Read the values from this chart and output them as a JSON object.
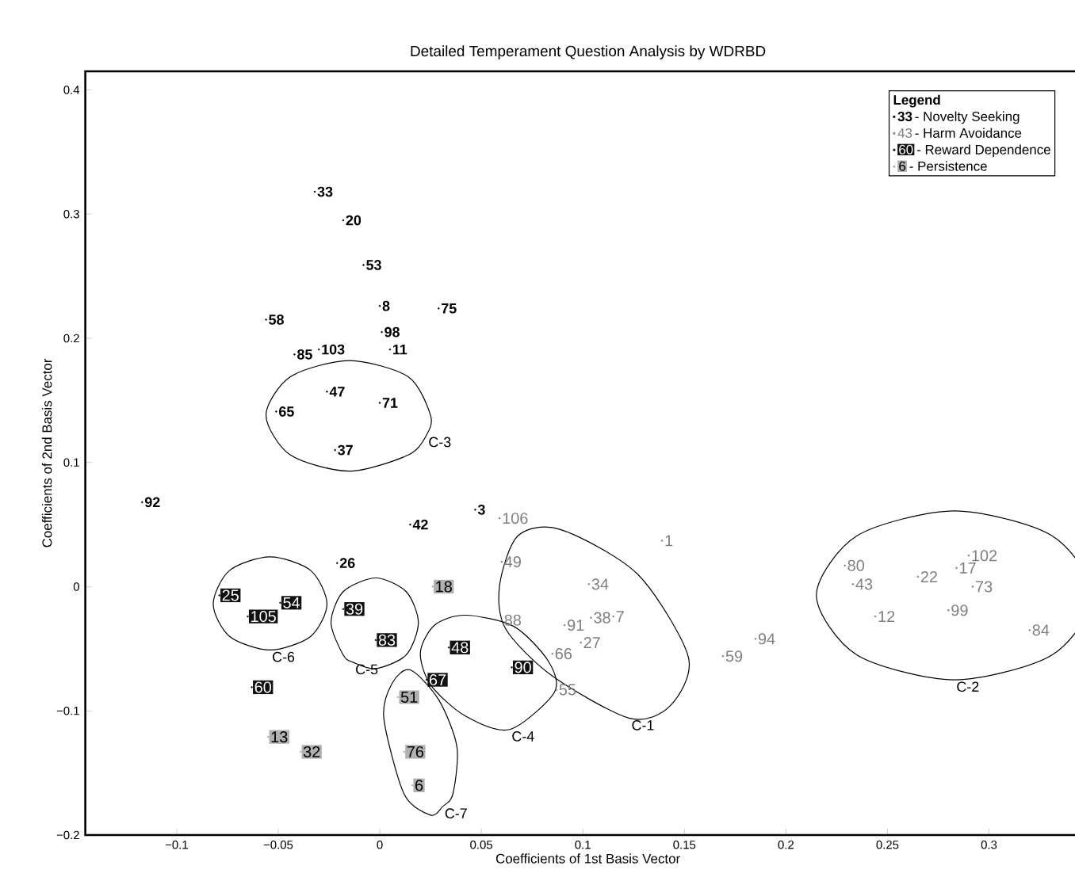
{
  "chart_data": {
    "type": "scatter",
    "title": "Detailed Temperament Question Analysis by WDRBD",
    "xlabel": "Coefficients of 1st Basis Vector",
    "ylabel": "Coefficients of 2nd Basis Vector",
    "legend_title": "Legend",
    "legend": "top right",
    "marker": "circle",
    "xlim": [
      -0.145,
      0.35
    ],
    "ylim": [
      -0.2,
      0.415
    ],
    "xticks": [
      {
        "value": -0.1,
        "label": "−0.1"
      },
      {
        "value": -0.05,
        "label": "−0.05"
      },
      0,
      0.05,
      0.1,
      0.15,
      0.2,
      0.25,
      0.3
    ],
    "yticks": [
      {
        "value": -0.2,
        "label": "−0.2"
      },
      {
        "value": -0.1,
        "label": "−0.1"
      },
      0,
      0.1,
      0.2,
      0.3,
      0.4
    ],
    "series": [
      {
        "name": "- Novelty Seeking",
        "color": "#000000",
        "x": [
          -0.032,
          -0.018,
          -0.008,
          0.0,
          0.029,
          -0.056,
          0.001,
          0.005,
          -0.042,
          -0.03,
          -0.026,
          0.0,
          -0.051,
          -0.022,
          -0.117,
          0.047,
          0.015,
          -0.021
        ],
        "values": [
          0.318,
          0.295,
          0.259,
          0.226,
          0.224,
          0.215,
          0.205,
          0.191,
          0.187,
          0.191,
          0.157,
          0.148,
          0.141,
          0.11,
          0.068,
          0.062,
          0.05,
          0.019
        ]
      },
      {
        "name": "- Harm Avoidance",
        "color": "#7f7f7f",
        "x": [
          0.233,
          0.059,
          0.06,
          0.139,
          0.103,
          0.06,
          0.091,
          0.104,
          0.115,
          0.099,
          0.085,
          0.087,
          0.169,
          0.185,
          0.229,
          0.265,
          0.284,
          0.29,
          0.292,
          0.28,
          0.244,
          0.32
        ],
        "values": [
          0.002,
          0.055,
          0.02,
          0.037,
          0.002,
          -0.027,
          -0.031,
          -0.025,
          -0.024,
          -0.045,
          -0.054,
          -0.083,
          -0.056,
          -0.042,
          0.017,
          0.008,
          0.015,
          0.025,
          0.0,
          -0.019,
          -0.024,
          -0.035
        ]
      },
      {
        "name": "- Reward Dependence",
        "color": "#111111",
        "x": [
          -0.063,
          -0.079,
          -0.065,
          -0.049,
          -0.018,
          -0.002,
          0.034,
          0.023,
          0.065
        ],
        "values": [
          -0.081,
          -0.007,
          -0.024,
          -0.013,
          -0.018,
          -0.043,
          -0.049,
          -0.075,
          -0.065
        ]
      },
      {
        "name": "- Persistence",
        "color": "#b0b0b0",
        "x": [
          0.016,
          0.026,
          0.009,
          -0.055,
          -0.039,
          0.012
        ],
        "values": [
          -0.16,
          0.0,
          -0.089,
          -0.121,
          -0.133,
          -0.133
        ]
      }
    ],
    "annotations": [
      {
        "text": "33",
        "x": -0.032,
        "y": 0.318
      },
      {
        "text": "20",
        "x": -0.018,
        "y": 0.295
      },
      {
        "text": "53",
        "x": -0.008,
        "y": 0.259
      },
      {
        "text": "8",
        "x": 0.0,
        "y": 0.226
      },
      {
        "text": "75",
        "x": 0.029,
        "y": 0.224
      },
      {
        "text": "58",
        "x": -0.056,
        "y": 0.215
      },
      {
        "text": "98",
        "x": 0.001,
        "y": 0.205
      },
      {
        "text": "11",
        "x": 0.005,
        "y": 0.191
      },
      {
        "text": "85",
        "x": -0.042,
        "y": 0.187
      },
      {
        "text": "103",
        "x": -0.03,
        "y": 0.191
      },
      {
        "text": "47",
        "x": -0.026,
        "y": 0.157
      },
      {
        "text": "71",
        "x": 0.0,
        "y": 0.148
      },
      {
        "text": "65",
        "x": -0.051,
        "y": 0.141
      },
      {
        "text": "37",
        "x": -0.022,
        "y": 0.11
      },
      {
        "text": "92",
        "x": -0.117,
        "y": 0.068
      },
      {
        "text": "3",
        "x": 0.047,
        "y": 0.062
      },
      {
        "text": "42",
        "x": 0.015,
        "y": 0.05
      },
      {
        "text": "26",
        "x": -0.021,
        "y": 0.019
      },
      {
        "text": "43",
        "x": 0.233,
        "y": 0.002
      },
      {
        "text": "106",
        "x": 0.059,
        "y": 0.055
      },
      {
        "text": "49",
        "x": 0.06,
        "y": 0.02
      },
      {
        "text": "1",
        "x": 0.139,
        "y": 0.037
      },
      {
        "text": "34",
        "x": 0.103,
        "y": 0.002
      },
      {
        "text": "88",
        "x": 0.06,
        "y": -0.027
      },
      {
        "text": "91",
        "x": 0.091,
        "y": -0.031
      },
      {
        "text": "38",
        "x": 0.104,
        "y": -0.025
      },
      {
        "text": "7",
        "x": 0.115,
        "y": -0.024
      },
      {
        "text": "27",
        "x": 0.099,
        "y": -0.045
      },
      {
        "text": "66",
        "x": 0.085,
        "y": -0.054
      },
      {
        "text": "55",
        "x": 0.087,
        "y": -0.083
      },
      {
        "text": "59",
        "x": 0.169,
        "y": -0.056
      },
      {
        "text": "94",
        "x": 0.185,
        "y": -0.042
      },
      {
        "text": "80",
        "x": 0.229,
        "y": 0.017
      },
      {
        "text": "22",
        "x": 0.265,
        "y": 0.008
      },
      {
        "text": "17",
        "x": 0.284,
        "y": 0.015
      },
      {
        "text": "102",
        "x": 0.29,
        "y": 0.025
      },
      {
        "text": "73",
        "x": 0.292,
        "y": 0.0
      },
      {
        "text": "99",
        "x": 0.28,
        "y": -0.019
      },
      {
        "text": "12",
        "x": 0.244,
        "y": -0.024
      },
      {
        "text": "84",
        "x": 0.32,
        "y": -0.035
      },
      {
        "text": "60",
        "x": -0.063,
        "y": -0.081
      },
      {
        "text": "25",
        "x": -0.079,
        "y": -0.007
      },
      {
        "text": "105",
        "x": -0.065,
        "y": -0.024
      },
      {
        "text": "54",
        "x": -0.049,
        "y": -0.013
      },
      {
        "text": "39",
        "x": -0.018,
        "y": -0.018
      },
      {
        "text": "83",
        "x": -0.002,
        "y": -0.043
      },
      {
        "text": "48",
        "x": 0.034,
        "y": -0.049
      },
      {
        "text": "67",
        "x": 0.023,
        "y": -0.075
      },
      {
        "text": "90",
        "x": 0.065,
        "y": -0.065
      },
      {
        "text": "6",
        "x": 0.016,
        "y": -0.16
      },
      {
        "text": "18",
        "x": 0.026,
        "y": 0.0
      },
      {
        "text": "51",
        "x": 0.009,
        "y": -0.089
      },
      {
        "text": "13",
        "x": -0.055,
        "y": -0.121
      },
      {
        "text": "32",
        "x": -0.039,
        "y": -0.133
      },
      {
        "text": "76",
        "x": 0.012,
        "y": -0.133
      },
      "33",
      "43",
      "60",
      "6",
      "C-1",
      "C-2",
      "C-3",
      "C-4",
      "C-5",
      "C-6",
      "C-7"
    ]
  }
}
